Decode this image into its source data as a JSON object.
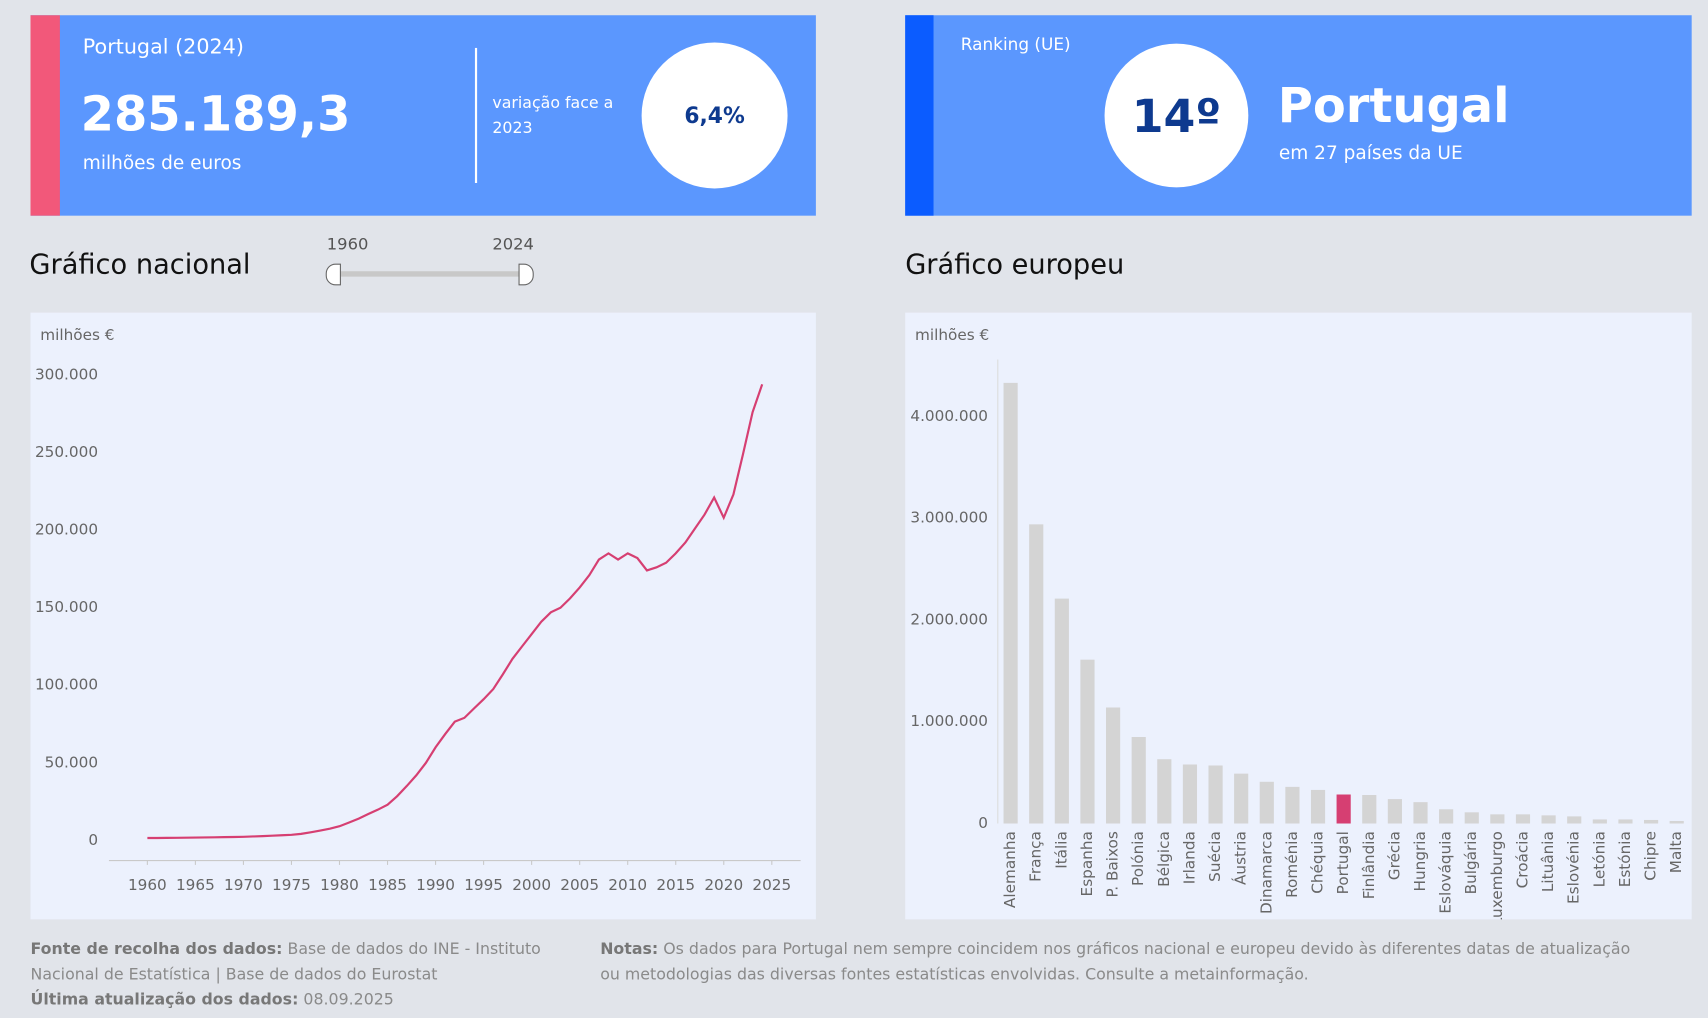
{
  "kpi_national": {
    "title": "Portugal (2024)",
    "value": "285.189,3",
    "unit": "milhões de euros",
    "change_label": "variação face a 2023",
    "change": "6,4%"
  },
  "kpi_ranking": {
    "title": "Ranking (UE)",
    "rank": "14º",
    "country": "Portugal",
    "subtitle": "em 27 países da UE"
  },
  "slider": {
    "start": "1960",
    "end": "2024"
  },
  "footer": {
    "source_label": "Fonte de recolha dos dados:",
    "source": "Base de dados do INE - Instituto Nacional de Estatística | Base de dados do Eurostat",
    "updated_label": "Última atualização dos dados:",
    "updated": "08.09.2025",
    "notes_label": "Notas:",
    "notes": "Os dados para Portugal nem sempre coincidem nos gráficos nacional e europeu devido às diferentes datas de atualização ou metodologias das diversas fontes estatísticas envolvidas. Consulte a metainformação."
  },
  "chart_data": [
    {
      "type": "line",
      "title": "Gráfico nacional",
      "y_label": "milhões €",
      "color": "#d63f72",
      "x": [
        1960,
        1961,
        1962,
        1963,
        1964,
        1965,
        1966,
        1967,
        1968,
        1969,
        1970,
        1971,
        1972,
        1973,
        1974,
        1975,
        1976,
        1977,
        1978,
        1979,
        1980,
        1981,
        1982,
        1983,
        1984,
        1985,
        1986,
        1987,
        1988,
        1989,
        1990,
        1991,
        1992,
        1993,
        1994,
        1995,
        1996,
        1997,
        1998,
        1999,
        2000,
        2001,
        2002,
        2003,
        2004,
        2005,
        2006,
        2007,
        2008,
        2009,
        2010,
        2011,
        2012,
        2013,
        2014,
        2015,
        2016,
        2017,
        2018,
        2019,
        2020,
        2021,
        2022,
        2023,
        2024
      ],
      "values": [
        1500,
        1550,
        1600,
        1680,
        1750,
        1830,
        1900,
        1980,
        2070,
        2180,
        2300,
        2500,
        2700,
        3000,
        3300,
        3600,
        4200,
        5200,
        6300,
        7600,
        9100,
        11500,
        14000,
        17000,
        19800,
        23000,
        28500,
        35000,
        42000,
        50000,
        60000,
        68500,
        76500,
        79000,
        85000,
        91000,
        97500,
        107000,
        117000,
        125000,
        133000,
        141000,
        147000,
        150000,
        156000,
        163000,
        171000,
        181000,
        185000,
        181000,
        185000,
        182000,
        174000,
        176000,
        179000,
        185000,
        192000,
        201000,
        210000,
        221000,
        208000,
        223000,
        249000,
        276000,
        294000
      ],
      "xlim": [
        1956,
        2028
      ],
      "xticks": [
        1960,
        1965,
        1970,
        1975,
        1980,
        1985,
        1990,
        1995,
        2000,
        2005,
        2010,
        2015,
        2020,
        2025
      ],
      "ylim": [
        -13000,
        310000
      ],
      "yticks": [
        0,
        {
          "value": 50000,
          "label": "50.000"
        },
        {
          "value": 100000,
          "label": "100.000"
        },
        {
          "value": 150000,
          "label": "150.000"
        },
        {
          "value": 200000,
          "label": "200.000"
        },
        {
          "value": 250000,
          "label": "250.000"
        },
        {
          "value": 300000,
          "label": "300.000"
        }
      ]
    },
    {
      "type": "bar",
      "title": "Gráfico europeu",
      "y_label": "milhões €",
      "categories": [
        "Alemanha",
        "França",
        "Itália",
        "Espanha",
        "P. Baixos",
        "Polónia",
        "Bélgica",
        "Irlanda",
        "Suécia",
        "Áustria",
        "Dinamarca",
        "Roménia",
        "Chéquia",
        "Portugal",
        "Finlândia",
        "Grécia",
        "Hungria",
        "Eslováquia",
        "Bulgária",
        "Luxemburgo",
        "Croácia",
        "Lituânia",
        "Eslovénia",
        "Letónia",
        "Estónia",
        "Chipre",
        "Malta"
      ],
      "values": [
        4330000,
        2940000,
        2210000,
        1610000,
        1140000,
        850000,
        632000,
        580000,
        570000,
        490000,
        410000,
        360000,
        330000,
        285000,
        280000,
        240000,
        210000,
        140000,
        110000,
        90000,
        90000,
        80000,
        70000,
        40000,
        40000,
        35000,
        25000
      ],
      "colors": [
        "#d4d4d4",
        "#d4d4d4",
        "#d4d4d4",
        "#d4d4d4",
        "#d4d4d4",
        "#d4d4d4",
        "#d4d4d4",
        "#d4d4d4",
        "#d4d4d4",
        "#d4d4d4",
        "#d4d4d4",
        "#d4d4d4",
        "#d4d4d4",
        "#d63f72",
        "#d4d4d4",
        "#d4d4d4",
        "#d4d4d4",
        "#d4d4d4",
        "#d4d4d4",
        "#d4d4d4",
        "#d4d4d4",
        "#d4d4d4",
        "#d4d4d4",
        "#d4d4d4",
        "#d4d4d4",
        "#d4d4d4",
        "#d4d4d4"
      ],
      "ylim": [
        0,
        4560000
      ],
      "yticks": [
        0,
        {
          "value": 1000000,
          "label": "1.000.000"
        },
        {
          "value": 2000000,
          "label": "2.000.000"
        },
        {
          "value": 3000000,
          "label": "3.000.000"
        },
        {
          "value": 4000000,
          "label": "4.000.000"
        }
      ]
    }
  ]
}
